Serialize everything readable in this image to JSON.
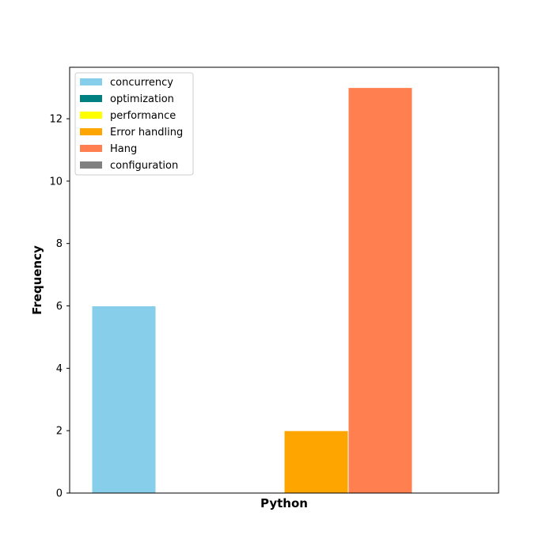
{
  "chart_data": {
    "type": "bar",
    "categories": [
      "Python"
    ],
    "series": [
      {
        "name": "concurrency",
        "values": [
          6
        ],
        "color": "#87CEEB"
      },
      {
        "name": "optimization",
        "values": [
          0
        ],
        "color": "#008080"
      },
      {
        "name": "performance",
        "values": [
          0
        ],
        "color": "#FFFF00"
      },
      {
        "name": "Error handling",
        "values": [
          2
        ],
        "color": "#FFA500"
      },
      {
        "name": "Hang",
        "values": [
          13
        ],
        "color": "#FF7F50"
      },
      {
        "name": "configuration",
        "values": [
          0
        ],
        "color": "#808080"
      }
    ],
    "title": "",
    "xlabel": "Python",
    "ylabel": "Frequency",
    "ylim": [
      0,
      13.65
    ],
    "yticks": [
      0,
      2,
      4,
      6,
      8,
      10,
      12
    ],
    "grid": false,
    "legend_position": "top-left"
  }
}
